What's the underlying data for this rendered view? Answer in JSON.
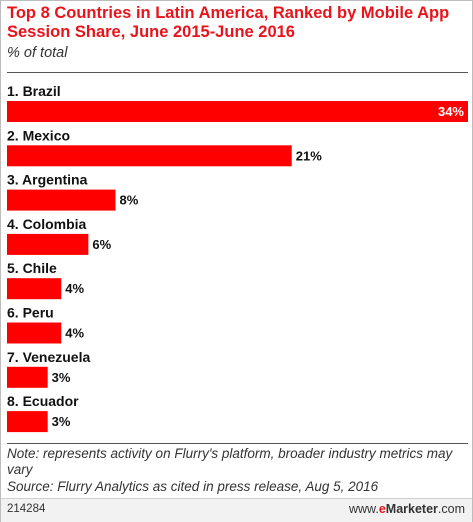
{
  "chart_data": {
    "type": "bar",
    "orientation": "horizontal",
    "title": "Top 8 Countries in Latin America, Ranked by Mobile App Session Share, June 2015-June 2016",
    "subtitle": "% of total",
    "categories": [
      "1. Brazil",
      "2. Mexico",
      "3. Argentina",
      "4. Colombia",
      "5. Chile",
      "6. Peru",
      "7. Venezuela",
      "8. Ecuador"
    ],
    "values": [
      34,
      21,
      8,
      6,
      4,
      4,
      3,
      3
    ],
    "value_labels": [
      "34%",
      "21%",
      "8%",
      "6%",
      "4%",
      "4%",
      "3%",
      "3%"
    ],
    "unit": "%",
    "xlim": [
      0,
      34
    ],
    "bar_color": "#ff0000",
    "grid": false,
    "legend": false
  },
  "footer": {
    "note": "Note: represents activity on Flurry's platform, broader industry metrics may vary",
    "source": "Source: Flurry Analytics as cited in press release, Aug 5, 2016",
    "chart_id": "214284",
    "brand_prefix": "www.",
    "brand_e": "e",
    "brand_name": "Marketer",
    "brand_suffix": ".com"
  }
}
